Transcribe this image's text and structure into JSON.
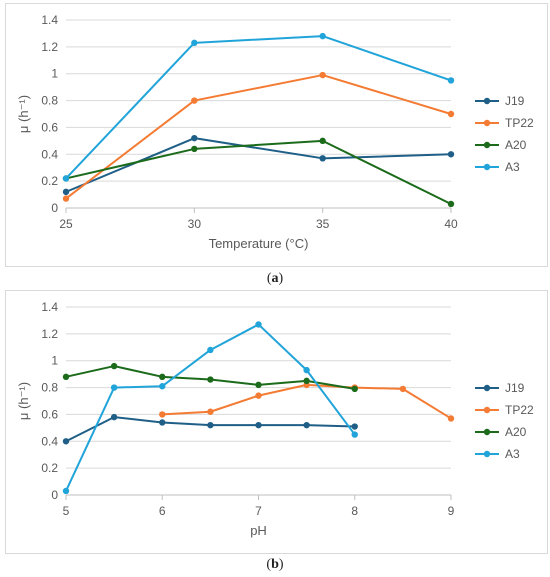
{
  "chart_data": [
    {
      "type": "line",
      "xlabel": "Temperature (°C)",
      "ylabel": "μ (h⁻¹)",
      "ylim": [
        0,
        1.4
      ],
      "yticks": [
        "0",
        "0.2",
        "0.4",
        "0.6",
        "0.8",
        "1",
        "1.2",
        "1.4"
      ],
      "xticks": [
        "25",
        "30",
        "35",
        "40"
      ],
      "x": [
        25,
        30,
        35,
        40
      ],
      "xlim": [
        25,
        40
      ],
      "grid": true,
      "legend": "right",
      "series": [
        {
          "name": "J19",
          "color": "#1f5f87",
          "points": [
            [
              25,
              0.12
            ],
            [
              30,
              0.52
            ],
            [
              35,
              0.37
            ],
            [
              40,
              0.4
            ]
          ]
        },
        {
          "name": "TP22",
          "color": "#f47b33",
          "points": [
            [
              25,
              0.07
            ],
            [
              30,
              0.8
            ],
            [
              35,
              0.99
            ],
            [
              40,
              0.7
            ]
          ]
        },
        {
          "name": "A20",
          "color": "#1b6b1b",
          "points": [
            [
              25,
              0.22
            ],
            [
              30,
              0.44
            ],
            [
              35,
              0.5
            ],
            [
              40,
              0.03
            ]
          ]
        },
        {
          "name": "A3",
          "color": "#21a4d9",
          "points": [
            [
              25,
              0.22
            ],
            [
              30,
              1.23
            ],
            [
              35,
              1.28
            ],
            [
              40,
              0.95
            ]
          ]
        }
      ],
      "caption": "(a)"
    },
    {
      "type": "line",
      "xlabel": "pH",
      "ylabel": "μ (h⁻¹)",
      "ylim": [
        0,
        1.4
      ],
      "yticks": [
        "0",
        "0.2",
        "0.4",
        "0.6",
        "0.8",
        "1",
        "1.2",
        "1.4"
      ],
      "xticks": [
        "5",
        "6",
        "7",
        "8",
        "9"
      ],
      "xlim": [
        5,
        9
      ],
      "grid": true,
      "legend": "right",
      "series": [
        {
          "name": "J19",
          "color": "#1f5f87",
          "points": [
            [
              5,
              0.4
            ],
            [
              5.5,
              0.58
            ],
            [
              6,
              0.54
            ],
            [
              6.5,
              0.52
            ],
            [
              7,
              0.52
            ],
            [
              7.5,
              0.52
            ],
            [
              8,
              0.51
            ]
          ]
        },
        {
          "name": "TP22",
          "color": "#f47b33",
          "points": [
            [
              6,
              0.6
            ],
            [
              6.5,
              0.62
            ],
            [
              7,
              0.74
            ],
            [
              7.5,
              0.82
            ],
            [
              8,
              0.8
            ],
            [
              8.5,
              0.79
            ],
            [
              9,
              0.57
            ]
          ]
        },
        {
          "name": "A20",
          "color": "#1b6b1b",
          "points": [
            [
              5,
              0.88
            ],
            [
              5.5,
              0.96
            ],
            [
              6,
              0.88
            ],
            [
              6.5,
              0.86
            ],
            [
              7,
              0.82
            ],
            [
              7.5,
              0.85
            ],
            [
              8,
              0.79
            ]
          ]
        },
        {
          "name": "A3",
          "color": "#21a4d9",
          "points": [
            [
              5,
              0.03
            ],
            [
              5.5,
              0.8
            ],
            [
              6,
              0.81
            ],
            [
              6.5,
              1.08
            ],
            [
              7,
              1.27
            ],
            [
              7.5,
              0.93
            ],
            [
              8,
              0.45
            ]
          ]
        }
      ],
      "caption": "(b)"
    }
  ],
  "captions": {
    "a_open": "(",
    "a_letter": "a",
    "a_close": ")",
    "b_open": "(",
    "b_letter": "b",
    "b_close": ")"
  }
}
